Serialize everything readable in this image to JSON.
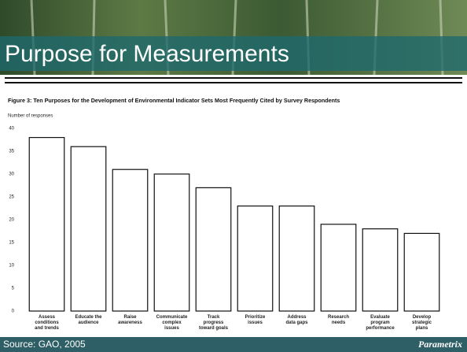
{
  "slide": {
    "title": "Purpose for Measurements",
    "source": "Source: GAO, 2005",
    "logo": "Parametrix"
  },
  "chart_data": {
    "type": "bar",
    "title": "Figure 3: Ten Purposes for the Development of Environmental Indicator Sets Most Frequently Cited by Survey Respondents",
    "y_label": "Number of responses",
    "categories": [
      "Assess\nconditions\nand trends",
      "Educate the\naudience",
      "Raise\nawareness",
      "Communicate\ncomplex\nissues",
      "Track\nprogress\ntoward goals",
      "Prioritize\nissues",
      "Address\ndata gaps",
      "Research\nneeds",
      "Evaluate\nprogram\nperformance",
      "Develop\nstrategic\nplans"
    ],
    "values": [
      38,
      36,
      31,
      30,
      27,
      23,
      23,
      19,
      18,
      17
    ],
    "color": "#ffffff",
    "ylim": [
      0,
      40
    ],
    "yticks": [
      0,
      5,
      10,
      15,
      20,
      25,
      30,
      35,
      40
    ],
    "grid": false
  }
}
